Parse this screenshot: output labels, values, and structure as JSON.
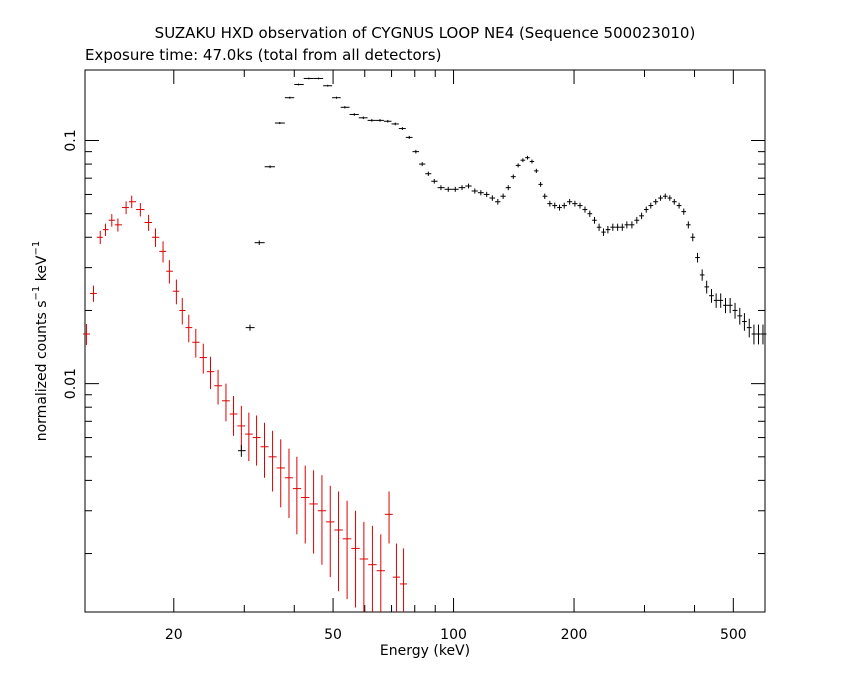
{
  "chart_data": {
    "type": "scatter",
    "title": "SUZAKU HXD observation of CYGNUS LOOP NE4 (Sequence 500023010)",
    "subtitle": "Exposure time: 47.0ks (total from all detectors)",
    "xlabel": "Energy (keV)",
    "ylabel_main": "normalized counts s",
    "ylabel_sup1": "−1",
    "ylabel_mid": " keV",
    "ylabel_sup2": "−1",
    "x_scale": "log",
    "y_scale": "log",
    "xlim": [
      12,
      600
    ],
    "ylim": [
      0.00115,
      0.195
    ],
    "x_ticks": [
      {
        "value": 20,
        "label": "20"
      },
      {
        "value": 50,
        "label": "50"
      },
      {
        "value": 100,
        "label": "100"
      },
      {
        "value": 200,
        "label": "200"
      },
      {
        "value": 500,
        "label": "500"
      }
    ],
    "x_minor_ticks": [
      30,
      40,
      60,
      70,
      80,
      90,
      300,
      400
    ],
    "y_ticks": [
      {
        "value": 0.01,
        "label": "0.01"
      },
      {
        "value": 0.1,
        "label": "0.1"
      }
    ],
    "y_minor_ticks": [
      0.002,
      0.003,
      0.004,
      0.005,
      0.006,
      0.007,
      0.008,
      0.009,
      0.02,
      0.03,
      0.04,
      0.05,
      0.06,
      0.07,
      0.08,
      0.09
    ],
    "series": [
      {
        "color": "#e00000",
        "points": [
          [
            12.1,
            0.016,
            0.0016
          ],
          [
            12.6,
            0.0235,
            0.0018
          ],
          [
            13.1,
            0.04,
            0.0025
          ],
          [
            13.5,
            0.043,
            0.0025
          ],
          [
            14.0,
            0.047,
            0.0028
          ],
          [
            14.5,
            0.045,
            0.0028
          ],
          [
            15.2,
            0.053,
            0.0032
          ],
          [
            15.7,
            0.056,
            0.0033
          ],
          [
            16.5,
            0.052,
            0.0033
          ],
          [
            17.3,
            0.046,
            0.0035
          ],
          [
            18.0,
            0.04,
            0.0035
          ],
          [
            18.8,
            0.035,
            0.0035
          ],
          [
            19.5,
            0.029,
            0.0032
          ],
          [
            20.3,
            0.024,
            0.0028
          ],
          [
            21.0,
            0.02,
            0.0025
          ],
          [
            21.8,
            0.017,
            0.0022
          ],
          [
            22.7,
            0.0148,
            0.002
          ],
          [
            23.7,
            0.0128,
            0.0018
          ],
          [
            24.7,
            0.0112,
            0.0017
          ],
          [
            25.8,
            0.0098,
            0.0016
          ],
          [
            27.0,
            0.0085,
            0.0015
          ],
          [
            28.2,
            0.0075,
            0.0014
          ],
          [
            29.5,
            0.0067,
            0.0014
          ],
          [
            30.8,
            0.0062,
            0.0014
          ],
          [
            32.2,
            0.006,
            0.0014
          ],
          [
            33.7,
            0.0055,
            0.0014
          ],
          [
            35.3,
            0.005,
            0.0014
          ],
          [
            37.0,
            0.0045,
            0.0014
          ],
          [
            38.8,
            0.0041,
            0.0013
          ],
          [
            40.6,
            0.0037,
            0.0013
          ],
          [
            42.6,
            0.0034,
            0.0012
          ],
          [
            44.7,
            0.0032,
            0.0012
          ],
          [
            46.9,
            0.003,
            0.0012
          ],
          [
            49.2,
            0.0027,
            0.0011
          ],
          [
            51.6,
            0.0025,
            0.0011
          ],
          [
            54.2,
            0.0023,
            0.001
          ],
          [
            56.9,
            0.0021,
            0.0009
          ],
          [
            59.7,
            0.0019,
            0.0008
          ],
          [
            62.7,
            0.0018,
            0.0008
          ],
          [
            65.8,
            0.0017,
            0.0007
          ],
          [
            69.0,
            0.0029,
            0.0007
          ],
          [
            72.0,
            0.0016,
            0.0006
          ],
          [
            75.0,
            0.0015,
            0.0006
          ]
        ]
      },
      {
        "color": "#000000",
        "points": [
          [
            29.5,
            0.0053,
            0.0003
          ],
          [
            31.0,
            0.017,
            0.0005
          ],
          [
            32.7,
            0.038,
            0.0008
          ],
          [
            34.8,
            0.078,
            0.001
          ],
          [
            36.8,
            0.118,
            0.0012
          ],
          [
            39.0,
            0.15,
            0.0015
          ],
          [
            41.0,
            0.17,
            0.0015
          ],
          [
            43.5,
            0.18,
            0.0015
          ],
          [
            46.0,
            0.18,
            0.0015
          ],
          [
            48.5,
            0.168,
            0.0015
          ],
          [
            51.0,
            0.15,
            0.0015
          ],
          [
            53.5,
            0.137,
            0.0015
          ],
          [
            56.5,
            0.128,
            0.0015
          ],
          [
            59.5,
            0.124,
            0.0015
          ],
          [
            62.5,
            0.121,
            0.0015
          ],
          [
            65.5,
            0.121,
            0.0015
          ],
          [
            68.5,
            0.12,
            0.0015
          ],
          [
            71.5,
            0.117,
            0.0015
          ],
          [
            74.5,
            0.112,
            0.0015
          ],
          [
            77.5,
            0.103,
            0.0015
          ],
          [
            80.5,
            0.09,
            0.0015
          ],
          [
            83.5,
            0.08,
            0.0015
          ],
          [
            86.5,
            0.073,
            0.0015
          ],
          [
            89.5,
            0.068,
            0.0015
          ],
          [
            93.0,
            0.064,
            0.0015
          ],
          [
            97.0,
            0.063,
            0.0015
          ],
          [
            101.0,
            0.063,
            0.0015
          ],
          [
            105.0,
            0.064,
            0.0015
          ],
          [
            109.0,
            0.065,
            0.0015
          ],
          [
            113.0,
            0.062,
            0.0015
          ],
          [
            117.0,
            0.061,
            0.0015
          ],
          [
            121.0,
            0.06,
            0.0015
          ],
          [
            125.0,
            0.058,
            0.0015
          ],
          [
            129.0,
            0.056,
            0.0015
          ],
          [
            133.0,
            0.059,
            0.0015
          ],
          [
            137.0,
            0.064,
            0.0015
          ],
          [
            141.0,
            0.071,
            0.0015
          ],
          [
            145.0,
            0.079,
            0.0015
          ],
          [
            149.0,
            0.083,
            0.0015
          ],
          [
            153.0,
            0.085,
            0.0015
          ],
          [
            157.0,
            0.082,
            0.0015
          ],
          [
            161.0,
            0.075,
            0.0015
          ],
          [
            165.0,
            0.066,
            0.0015
          ],
          [
            169.0,
            0.059,
            0.0015
          ],
          [
            174.0,
            0.055,
            0.0015
          ],
          [
            179.0,
            0.054,
            0.0015
          ],
          [
            184.0,
            0.053,
            0.0015
          ],
          [
            189.0,
            0.054,
            0.0015
          ],
          [
            195.0,
            0.056,
            0.0015
          ],
          [
            201.0,
            0.055,
            0.0015
          ],
          [
            207.0,
            0.054,
            0.0015
          ],
          [
            213.0,
            0.052,
            0.0015
          ],
          [
            219.0,
            0.05,
            0.0015
          ],
          [
            225.0,
            0.047,
            0.0015
          ],
          [
            231.0,
            0.044,
            0.0015
          ],
          [
            237.0,
            0.042,
            0.0015
          ],
          [
            243.0,
            0.043,
            0.0015
          ],
          [
            250.0,
            0.044,
            0.0015
          ],
          [
            257.0,
            0.044,
            0.0015
          ],
          [
            264.0,
            0.044,
            0.0015
          ],
          [
            271.0,
            0.045,
            0.0015
          ],
          [
            279.0,
            0.045,
            0.0015
          ],
          [
            287.0,
            0.047,
            0.0015
          ],
          [
            295.0,
            0.049,
            0.0015
          ],
          [
            303.0,
            0.052,
            0.0015
          ],
          [
            311.0,
            0.054,
            0.0015
          ],
          [
            320.0,
            0.056,
            0.0015
          ],
          [
            329.0,
            0.058,
            0.0015
          ],
          [
            338.0,
            0.059,
            0.0015
          ],
          [
            347.0,
            0.058,
            0.0015
          ],
          [
            356.0,
            0.056,
            0.0015
          ],
          [
            366.0,
            0.054,
            0.0015
          ],
          [
            376.0,
            0.051,
            0.0015
          ],
          [
            386.0,
            0.045,
            0.0015
          ],
          [
            396.0,
            0.04,
            0.0015
          ],
          [
            407.0,
            0.033,
            0.0015
          ],
          [
            418.0,
            0.028,
            0.0015
          ],
          [
            429.0,
            0.025,
            0.0015
          ],
          [
            441.0,
            0.023,
            0.0015
          ],
          [
            453.0,
            0.022,
            0.0015
          ],
          [
            465.0,
            0.022,
            0.0015
          ],
          [
            478.0,
            0.021,
            0.0015
          ],
          [
            491.0,
            0.021,
            0.0015
          ],
          [
            505.0,
            0.02,
            0.0015
          ],
          [
            519.0,
            0.019,
            0.0015
          ],
          [
            533.0,
            0.018,
            0.0015
          ],
          [
            548.0,
            0.017,
            0.0015
          ],
          [
            563.0,
            0.016,
            0.0015
          ],
          [
            578.0,
            0.016,
            0.0015
          ],
          [
            593.0,
            0.016,
            0.0015
          ]
        ]
      }
    ]
  }
}
